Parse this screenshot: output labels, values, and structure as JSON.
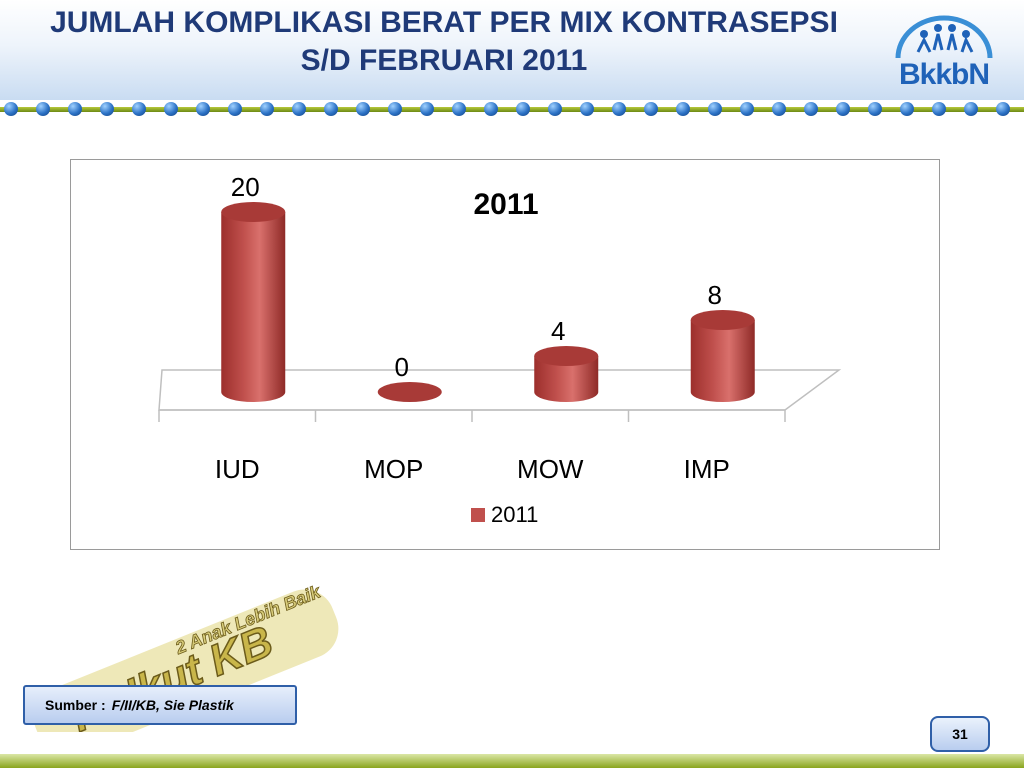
{
  "slide": {
    "title_line1": "JUMLAH KOMPLIKASI BERAT PER MIX KONTRASEPSI",
    "title_line2": "S/D FEBRUARI  2011",
    "logo_text": "BkkbN",
    "slogan_main": "Yo Ikut KB",
    "slogan_sub": "2 Anak Lebih Baik",
    "source_label": "Sumber :",
    "source_value": "F/II/KB, Sie Plastik",
    "page_number": "31"
  },
  "colors": {
    "title": "#1f3a78",
    "bar": "#c0504d",
    "bar_top": "#a83a37",
    "accent_blue": "#2f5fa8",
    "rope_green": "#8aa51e"
  },
  "chart_data": {
    "type": "bar",
    "title": "2011",
    "categories": [
      "IUD",
      "MOP",
      "MOW",
      "IMP"
    ],
    "series": [
      {
        "name": "2011",
        "values": [
          20,
          0,
          4,
          8
        ]
      }
    ],
    "ylim": [
      0,
      20
    ],
    "grid": false,
    "legend": "bottom",
    "style": "3d-cylinder"
  }
}
